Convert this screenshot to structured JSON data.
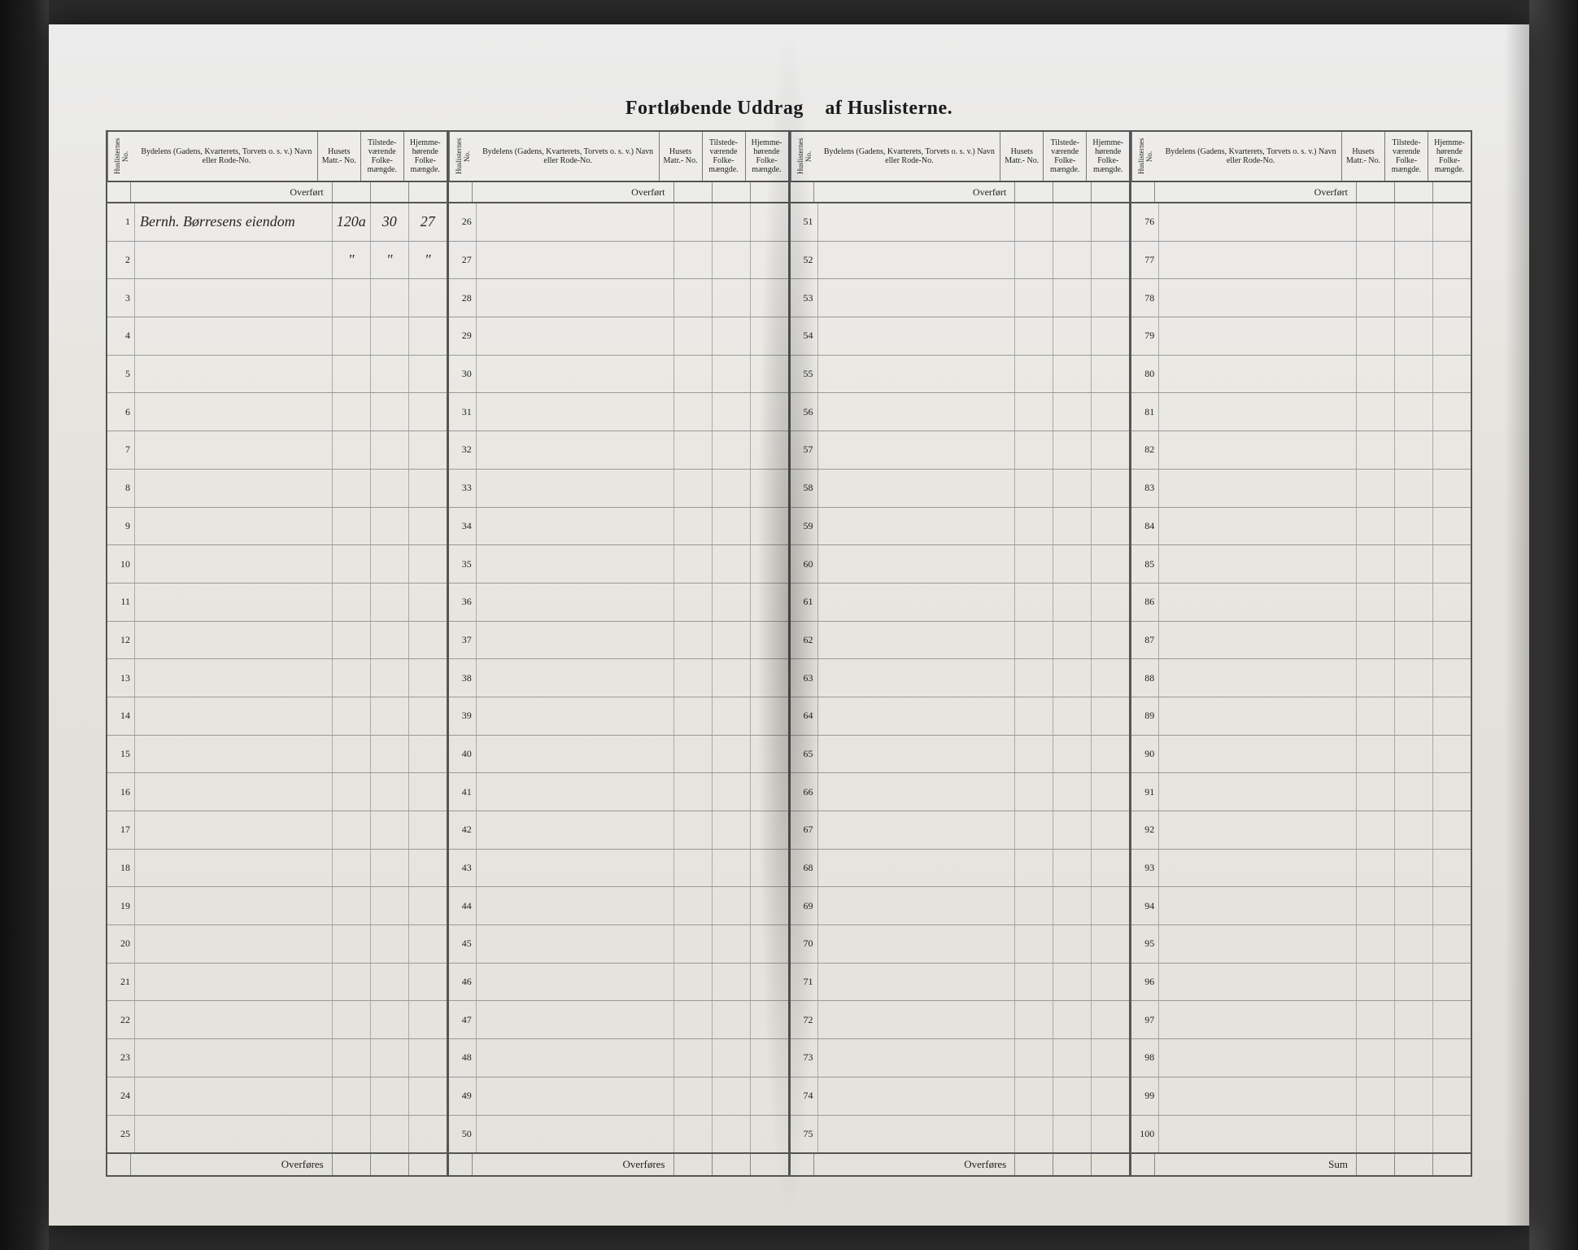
{
  "colors": {
    "background": "#2b2b2b",
    "paper": "#e5e2db",
    "ink": "#1b1b1b",
    "rule": "#555555",
    "rule_light": "#999999",
    "handwriting": "#2a2620"
  },
  "typography": {
    "title_fontsize": 24,
    "title_weight": 700,
    "header_fontsize": 10,
    "body_fontsize": 13,
    "family": "Georgia, Times New Roman, serif",
    "hand_family": "Brush Script MT, cursive"
  },
  "title": {
    "left": "Fortløbende Uddrag",
    "right": "af Huslisterne."
  },
  "column_headers": {
    "no": "Huslisternes No.",
    "desc": "Bydelens (Gadens, Kvarterets, Torvets o. s. v.) Navn eller Rode-No.",
    "matr": "Husets Matr.- No.",
    "tilstede": "Tilstede- værende Folke- mængde.",
    "hjemme": "Hjemme- hørende Folke- mængde."
  },
  "labels": {
    "overfort": "Overført",
    "overfores": "Overføres",
    "sum": "Sum"
  },
  "sets": [
    {
      "start": 1,
      "end": 25,
      "footer": "overfores",
      "entries": {
        "1": {
          "desc": "Bernh. Børresens eiendom",
          "matr": "120a",
          "tilstede": "30",
          "hjemme": "27"
        },
        "2": {
          "desc": "",
          "matr": "\"",
          "tilstede": "\"",
          "hjemme": "\""
        }
      }
    },
    {
      "start": 26,
      "end": 50,
      "footer": "overfores",
      "entries": {}
    },
    {
      "start": 51,
      "end": 75,
      "footer": "overfores",
      "entries": {}
    },
    {
      "start": 76,
      "end": 100,
      "footer": "sum",
      "entries": {}
    }
  ]
}
